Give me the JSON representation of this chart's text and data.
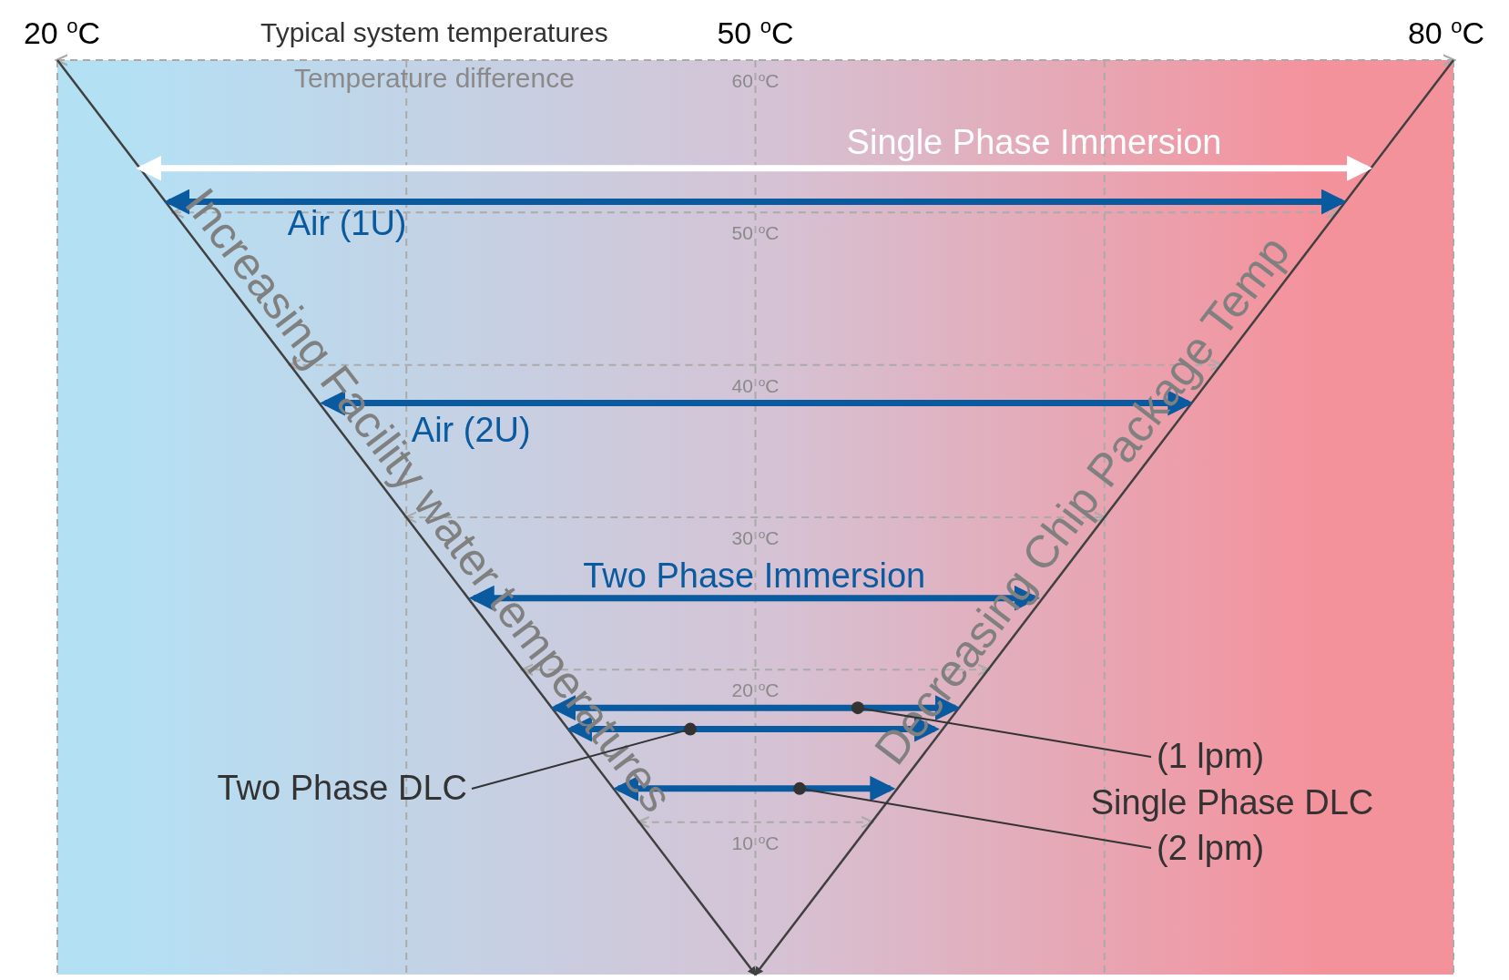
{
  "chart_data": {
    "type": "line",
    "xlabel": "Typical system temperatures",
    "ylabel": "Temperature difference",
    "xlim": [
      20,
      80
    ],
    "ylim": [
      0,
      60
    ],
    "xticks": [
      {
        "value": 20,
        "label": "20 $^{o}$C"
      },
      {
        "value": 35,
        "label": null
      },
      {
        "value": 50,
        "label": "50 $^{o}$C"
      },
      {
        "value": 65,
        "label": null
      },
      {
        "value": 80,
        "label": "80 $^{o}$C"
      }
    ],
    "yticks": [
      {
        "value": 10,
        "label": "10 $^{o}$C"
      },
      {
        "value": 20,
        "label": "20 $^{o}$C"
      },
      {
        "value": 30,
        "label": "30 $^{o}$C"
      },
      {
        "value": 40,
        "label": "40 $^{o}$C"
      },
      {
        "value": 50,
        "label": "50 $^{o}$C"
      },
      {
        "value": 60,
        "label": "60 $^{o}$C"
      }
    ],
    "grid": true,
    "marker": "none",
    "series": [
      {
        "name": "Increasing Facility water temperatures",
        "color": "#404040",
        "x": [
          20,
          50
        ],
        "values": [
          60,
          0
        ]
      },
      {
        "name": "Decreasing Chip Package Temp",
        "color": "#404040",
        "x": [
          80,
          50
        ],
        "values": [
          60,
          0
        ]
      },
      {
        "name": "Single Phase Immersion",
        "color": "#ffffff",
        "x": [
          23.6,
          76.3
        ],
        "values": [
          52.9,
          52.9
        ]
      },
      {
        "name": "Air (1U)",
        "color": "#0a5aa0",
        "x": [
          24.8,
          75.2
        ],
        "values": [
          50.7,
          50.7
        ]
      },
      {
        "name": "Air (2U)",
        "color": "#0a5aa0",
        "x": [
          31.5,
          68.6
        ],
        "values": [
          37.5,
          37.5
        ]
      },
      {
        "name": "Two Phase Immersion",
        "color": "#0a5aa0",
        "x": [
          37.9,
          62.0
        ],
        "values": [
          24.7,
          24.7
        ]
      },
      {
        "color": "#0a5aa0",
        "x": [
          41.4,
          58.6
        ],
        "values": [
          17.5,
          17.5
        ]
      },
      {
        "color": "#0a5aa0",
        "x": [
          42.1,
          57.7
        ],
        "values": [
          16.1,
          16.1
        ]
      },
      {
        "color": "#0a5aa0",
        "x": [
          44.1,
          55.8
        ],
        "values": [
          12.2,
          12.2
        ]
      }
    ],
    "annotations": [
      {
        "text": "(1 lpm)",
        "x": 54.4,
        "y": 17.5
      },
      {
        "text": "Two Phase DLC",
        "x": 47.2,
        "y": 16.1
      },
      {
        "text": "(2 lpm)",
        "x": 51.9,
        "y": 12.2
      },
      "Single Phase DLC"
    ]
  }
}
